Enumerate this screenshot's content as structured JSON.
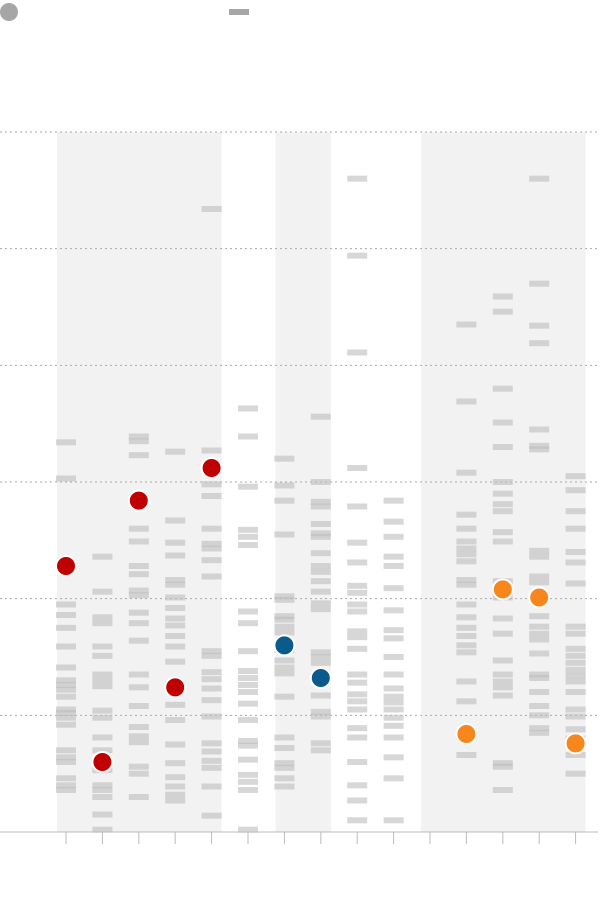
{
  "chart_data": {
    "type": "strip",
    "categories": [
      null,
      null,
      null,
      null,
      null,
      null,
      null,
      null,
      null,
      null,
      null,
      null,
      null,
      null,
      null
    ],
    "ylim": [
      0,
      6
    ],
    "yticks": [
      0,
      1,
      2,
      3,
      4,
      5,
      6
    ],
    "grid": true,
    "strip_color": "#bdbdbd",
    "shade_color": "#f2f2f2",
    "shaded": [
      true,
      true,
      true,
      true,
      true,
      false,
      true,
      true,
      false,
      false,
      true,
      true,
      true,
      true,
      true
    ],
    "strips": [
      [
        3.34,
        3.03,
        1.95,
        1.86,
        1.75,
        1.59,
        1.41,
        1.3,
        1.26,
        1.22,
        1.16,
        1.05,
        1.02,
        0.98,
        0.92,
        0.7,
        0.64,
        0.6,
        0.46,
        0.4,
        0.36
      ],
      [
        2.36,
        2.06,
        1.84,
        1.79,
        1.59,
        1.51,
        1.35,
        1.3,
        1.25,
        1.04,
        0.98,
        0.81,
        0.7,
        0.53,
        0.4,
        0.36,
        0.3,
        0.15,
        0.02
      ],
      [
        3.39,
        3.35,
        3.23,
        2.6,
        2.49,
        2.28,
        2.21,
        2.07,
        2.03,
        1.88,
        1.79,
        1.64,
        1.35,
        1.24,
        1.08,
        0.9,
        0.82,
        0.77,
        0.56,
        0.5,
        0.3
      ],
      [
        3.26,
        2.67,
        2.48,
        2.37,
        2.16,
        2.12,
        2.01,
        1.92,
        1.83,
        1.77,
        1.68,
        1.59,
        1.46,
        1.27,
        1.09,
        0.96,
        0.75,
        0.59,
        0.47,
        0.39,
        0.32,
        0.27
      ],
      [
        5.34,
        3.27,
        2.98,
        2.88,
        2.6,
        2.47,
        2.43,
        2.33,
        2.19,
        1.55,
        1.51,
        1.37,
        1.31,
        1.23,
        1.13,
        0.99,
        0.76,
        0.69,
        0.61,
        0.55,
        0.39,
        0.14
      ],
      [
        3.63,
        3.39,
        2.96,
        2.59,
        2.53,
        2.46,
        1.89,
        1.79,
        1.55,
        1.38,
        1.32,
        1.26,
        1.2,
        1.1,
        0.96,
        0.78,
        0.74,
        0.62,
        0.49,
        0.43,
        0.36,
        0.02
      ],
      [
        3.2,
        2.97,
        2.84,
        2.55,
        2.02,
        1.99,
        1.85,
        1.82,
        1.76,
        1.71,
        1.56,
        1.47,
        1.41,
        1.36,
        1.16,
        0.81,
        0.72,
        0.59,
        0.55,
        0.46,
        0.39
      ],
      [
        3.56,
        3.0,
        2.83,
        2.79,
        2.64,
        2.56,
        2.53,
        2.39,
        2.28,
        2.23,
        2.15,
        2.06,
        1.96,
        1.91,
        1.54,
        1.5,
        1.45,
        1.17,
        1.03,
        0.99,
        0.76,
        0.7
      ],
      [
        5.6,
        4.94,
        4.11,
        3.12,
        2.79,
        2.48,
        2.31,
        2.11,
        2.05,
        1.95,
        1.89,
        1.72,
        1.67,
        1.57,
        1.35,
        1.28,
        1.18,
        1.12,
        1.05,
        0.89,
        0.81,
        0.6,
        0.4,
        0.27,
        0.1
      ],
      [
        2.84,
        2.66,
        2.53,
        2.36,
        2.28,
        2.09,
        1.9,
        1.73,
        1.66,
        1.5,
        1.35,
        1.23,
        1.16,
        1.11,
        1.05,
        0.98,
        0.91,
        0.81,
        0.64,
        0.46,
        0.1
      ],
      [],
      [
        4.35,
        3.69,
        3.08,
        2.72,
        2.6,
        2.49,
        2.43,
        2.38,
        2.32,
        2.16,
        2.12,
        1.95,
        1.84,
        1.75,
        1.68,
        1.6,
        1.54,
        1.29,
        1.12,
        0.66
      ],
      [
        4.59,
        4.46,
        3.8,
        3.51,
        3.3,
        3.0,
        2.9,
        2.81,
        2.75,
        2.57,
        2.49,
        2.15,
        2.01,
        1.83,
        1.7,
        1.47,
        1.35,
        1.29,
        1.24,
        1.17,
        0.59,
        0.56,
        0.36
      ],
      [
        5.6,
        4.7,
        4.34,
        4.19,
        3.45,
        3.31,
        3.28,
        2.41,
        2.36,
        2.19,
        2.14,
        2.03,
        1.85,
        1.76,
        1.7,
        1.65,
        1.53,
        1.35,
        1.32,
        1.2,
        1.08,
        1.0,
        0.89,
        0.85
      ],
      [
        3.05,
        2.93,
        2.75,
        2.6,
        2.4,
        2.31,
        2.13,
        1.76,
        1.7,
        1.57,
        1.51,
        1.45,
        1.39,
        1.34,
        1.29,
        1.2,
        1.05,
        0.99,
        0.88,
        0.8,
        0.66,
        0.5
      ]
    ],
    "points": [
      2.28,
      0.6,
      2.84,
      1.24,
      3.12,
      null,
      1.6,
      1.32,
      null,
      null,
      null,
      0.84,
      2.08,
      2.01,
      0.76
    ],
    "point_colors": [
      "#c00000",
      "#c00000",
      "#c00000",
      "#c00000",
      "#c00000",
      null,
      "#0b5a8c",
      "#0b5a8c",
      null,
      null,
      null,
      "#f7861c",
      "#f7861c",
      "#f7861c",
      "#f7861c"
    ]
  }
}
